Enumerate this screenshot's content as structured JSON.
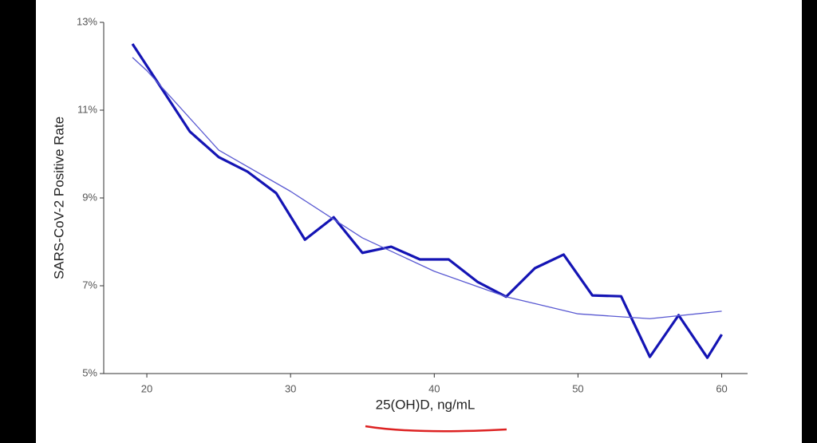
{
  "chart_data": {
    "type": "line",
    "xlabel": "25(OH)D, ng/mL",
    "ylabel": "SARS-CoV-2 Positive Rate",
    "xlim": [
      17,
      61.8
    ],
    "xticks": [
      20,
      30,
      40,
      50,
      60
    ],
    "ylim": [
      5,
      13
    ],
    "yticks": [
      {
        "value": 5,
        "label": "5%"
      },
      {
        "value": 7,
        "label": "7%"
      },
      {
        "value": 9,
        "label": "9%"
      },
      {
        "value": 11,
        "label": "11%"
      },
      {
        "value": 13,
        "label": "13%"
      }
    ],
    "series": [
      {
        "color": "#1414b4",
        "width": 3.2,
        "x": [
          19,
          21,
          23,
          25,
          27,
          29,
          31,
          33,
          35,
          37,
          39,
          41,
          43,
          45,
          47,
          49,
          51,
          53,
          55,
          57,
          59,
          60
        ],
        "values": [
          12.51,
          11.51,
          10.51,
          9.93,
          9.6,
          9.11,
          8.05,
          8.56,
          7.75,
          7.89,
          7.6,
          7.6,
          7.09,
          6.75,
          7.4,
          7.71,
          6.78,
          6.76,
          5.38,
          6.33,
          5.36,
          5.89
        ]
      },
      {
        "color": "#5a5ad2",
        "width": 1.3,
        "x": [
          19,
          20,
          25,
          30,
          35,
          40,
          45,
          50,
          55,
          60
        ],
        "values": [
          12.2,
          11.9,
          10.09,
          9.15,
          8.09,
          7.33,
          6.75,
          6.36,
          6.25,
          6.42
        ]
      }
    ]
  }
}
